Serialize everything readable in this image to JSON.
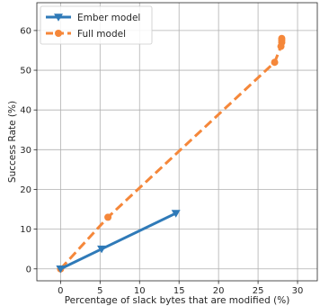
{
  "chart_data": {
    "type": "line",
    "xlabel": "Percentage of slack bytes that are modified (%)",
    "ylabel": "Success Rate (%)",
    "xlim": [
      -3,
      32.5
    ],
    "ylim": [
      -3,
      67
    ],
    "xticks": [
      0,
      5,
      10,
      15,
      20,
      25,
      30
    ],
    "yticks": [
      0,
      10,
      20,
      30,
      40,
      50,
      60
    ],
    "grid": true,
    "legend_position": "top-left",
    "series": [
      {
        "name": "Ember model",
        "color": "#2f7ab8",
        "style": "solid",
        "marker": "triangle-down",
        "x": [
          0,
          5.2,
          14.6
        ],
        "y": [
          0,
          5,
          14
        ]
      },
      {
        "name": "Full model",
        "color": "#f5873a",
        "style": "dashed",
        "marker": "circle",
        "x": [
          0,
          6,
          27.1,
          27.9,
          28.0,
          28.0,
          28.0
        ],
        "y": [
          0,
          13,
          52,
          56,
          57,
          57.5,
          58
        ]
      }
    ]
  }
}
